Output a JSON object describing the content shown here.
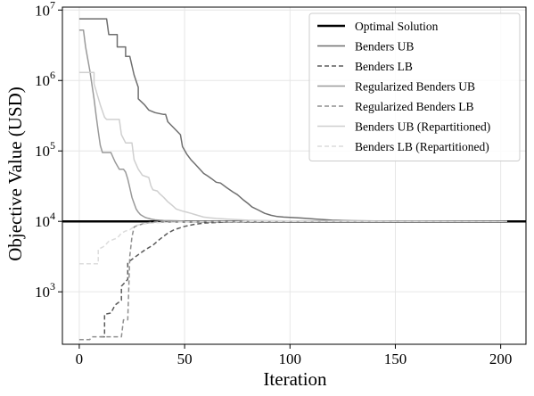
{
  "chart_data": {
    "type": "line",
    "xlabel": "Iteration",
    "ylabel": "Objective Value (USD)",
    "y_scale": "log",
    "xlim": [
      -8,
      212
    ],
    "ylim": [
      180,
      11000000
    ],
    "x_ticks": [
      0,
      50,
      100,
      150,
      200
    ],
    "y_ticks": [
      1000,
      10000,
      100000,
      1000000,
      10000000
    ],
    "y_tick_exponents": [
      "3",
      "4",
      "5",
      "6",
      "7"
    ],
    "grid": true,
    "legend_position": "top-right",
    "horizontal_line": {
      "name": "Optimal Solution",
      "value": 10000,
      "color": "#000000"
    },
    "series": [
      {
        "name": "Benders UB",
        "color": "#6f6f6f",
        "dash": "solid",
        "x": [
          0,
          13,
          14,
          18,
          18,
          22,
          22,
          24,
          26,
          28,
          28,
          31,
          33,
          36,
          38,
          40,
          41,
          42,
          48,
          49,
          51,
          53,
          55,
          57,
          59,
          61,
          63,
          65,
          67,
          70,
          73,
          75,
          78,
          80,
          82,
          85,
          88,
          91,
          94,
          97,
          100,
          104,
          108,
          112,
          116,
          120,
          125,
          130,
          140,
          150,
          160,
          170,
          180,
          190,
          203
        ],
        "y": [
          7500000,
          7500000,
          4500000,
          4500000,
          3000000,
          3000000,
          2200000,
          2200000,
          1200000,
          800000,
          550000,
          450000,
          380000,
          350000,
          340000,
          330000,
          330000,
          260000,
          170000,
          115000,
          90000,
          75000,
          65000,
          56000,
          48000,
          44000,
          40000,
          36000,
          35000,
          30000,
          26000,
          24000,
          20000,
          18000,
          16000,
          14500,
          13000,
          12200,
          11700,
          11500,
          11400,
          11200,
          11000,
          10800,
          10600,
          10400,
          10300,
          10200,
          10150,
          10100,
          10080,
          10060,
          10040,
          10030,
          10020
        ]
      },
      {
        "name": "Benders LB",
        "color": "#5a5a5a",
        "dash": "dashed",
        "x": [
          10,
          12,
          12,
          15,
          17,
          20,
          20,
          23,
          23,
          27,
          31,
          35,
          38,
          42,
          45,
          50,
          55,
          60,
          70,
          80,
          90,
          100,
          110,
          120,
          130,
          140,
          150,
          160,
          170,
          180,
          190,
          203
        ],
        "y": [
          230,
          230,
          480,
          500,
          650,
          760,
          1200,
          1500,
          2600,
          3200,
          3900,
          4600,
          5500,
          6800,
          7600,
          8500,
          9100,
          9500,
          9800,
          9900,
          9950,
          9970,
          9980,
          9985,
          9990,
          9993,
          9995,
          9997,
          9998,
          9999,
          9999,
          10000
        ]
      },
      {
        "name": "Regularized Benders UB",
        "color": "#9a9a9a",
        "dash": "solid",
        "x": [
          0,
          2,
          3,
          5,
          7,
          8,
          9,
          10,
          11,
          12,
          13,
          15,
          17,
          19,
          20,
          21,
          22,
          23,
          24,
          25,
          26,
          27,
          28,
          29,
          30,
          31,
          32,
          33,
          34,
          36,
          38,
          40,
          45,
          50,
          60,
          80,
          100,
          150,
          203
        ],
        "y": [
          5200000,
          5200000,
          3000000,
          1400000,
          550000,
          320000,
          190000,
          120000,
          95000,
          95000,
          95000,
          95000,
          70000,
          55000,
          55000,
          55000,
          50000,
          40000,
          30000,
          22000,
          18000,
          15000,
          13500,
          12500,
          12000,
          11500,
          11200,
          11000,
          10800,
          10500,
          10400,
          10300,
          10200,
          10100,
          10060,
          10030,
          10010,
          10000,
          10000
        ]
      },
      {
        "name": "Regularized Benders LB",
        "color": "#8f8f8f",
        "dash": "dashed",
        "x": [
          0,
          5,
          6,
          20,
          21,
          23,
          24,
          25,
          26,
          27,
          28,
          30,
          32,
          34,
          36,
          40,
          50,
          70,
          100,
          150,
          203
        ],
        "y": [
          210,
          210,
          230,
          230,
          400,
          400,
          3200,
          6000,
          8300,
          8600,
          8800,
          9200,
          9500,
          9700,
          9800,
          9900,
          9950,
          9980,
          9995,
          10000,
          10000
        ]
      },
      {
        "name": "Benders UB (Repartitioned)",
        "color": "#cfcfcf",
        "dash": "solid",
        "x": [
          0,
          7,
          7,
          10,
          12,
          13,
          17,
          19,
          20,
          22,
          25,
          26,
          28,
          30,
          33,
          34,
          35,
          37,
          38,
          40,
          42,
          44,
          46,
          49,
          51,
          53,
          55,
          57,
          59,
          62,
          65,
          70,
          75,
          80,
          90,
          100,
          120,
          150,
          203
        ],
        "y": [
          1300000,
          1300000,
          900000,
          450000,
          300000,
          280000,
          280000,
          280000,
          170000,
          130000,
          130000,
          75000,
          55000,
          45000,
          42000,
          32000,
          28000,
          27000,
          25000,
          22000,
          19000,
          17000,
          15000,
          14000,
          13500,
          13000,
          12500,
          12000,
          11500,
          11200,
          11000,
          10800,
          10600,
          10400,
          10250,
          10150,
          10080,
          10030,
          10010
        ]
      },
      {
        "name": "Benders LB (Repartitioned)",
        "color": "#dcdcdc",
        "dash": "dashed",
        "x": [
          0,
          9,
          9,
          11,
          12,
          14,
          16,
          18,
          20,
          22,
          24,
          26,
          27,
          29,
          31,
          33,
          35,
          40,
          45,
          50,
          60,
          80,
          100,
          150,
          203
        ],
        "y": [
          2500,
          2500,
          4000,
          4300,
          4500,
          5200,
          5500,
          5800,
          6800,
          7300,
          7600,
          8400,
          8800,
          9000,
          9200,
          9400,
          9500,
          9650,
          9750,
          9850,
          9920,
          9970,
          9990,
          10000,
          10000
        ]
      }
    ]
  }
}
